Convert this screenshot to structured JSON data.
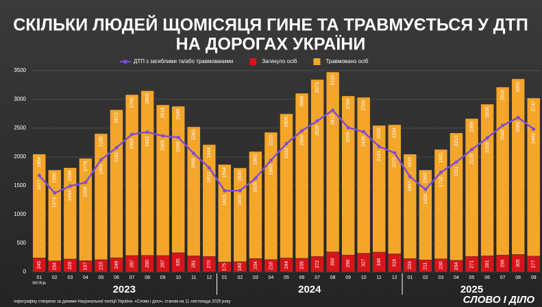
{
  "chart_data": {
    "type": "bar",
    "title": "СКІЛЬКИ ЛЮДЕЙ ЩОМІСЯЦЯ ГИНЕ ТА ТРАВМУЄТЬСЯ У ДТП",
    "subtitle": "НА ДОРОГАХ УКРАЇНИ",
    "x_label": "МІСЯЦЬ",
    "categories": [
      "01",
      "02",
      "03",
      "04",
      "05",
      "06",
      "07",
      "08",
      "09",
      "10",
      "11",
      "12",
      "01",
      "02",
      "03",
      "04",
      "05",
      "06",
      "07",
      "08",
      "09",
      "10",
      "11",
      "12",
      "01",
      "02",
      "03",
      "04",
      "05",
      "06",
      "07",
      "08",
      "09"
    ],
    "years": [
      "2023",
      "2024",
      "2025"
    ],
    "series": [
      {
        "name": "ДТП з загиблими та/або травмованими",
        "type": "line",
        "color": "#7b4fd6",
        "values": [
          1677,
          1373,
          1494,
          1556,
          1951,
          2161,
          2393,
          2432,
          2365,
          2340,
          2059,
          1812,
          1413,
          1415,
          1629,
          1943,
          2232,
          2454,
          2626,
          2812,
          2509,
          2436,
          2181,
          2070,
          1657,
          1436,
          1733,
          1911,
          2129,
          2329,
          2546,
          2685,
          2483
        ]
      },
      {
        "name": "Загинуло осіб",
        "type": "bar",
        "color": "#d7141a",
        "values": [
          245,
          194,
          226,
          197,
          215,
          249,
          287,
          290,
          287,
          335,
          281,
          270,
          175,
          180,
          234,
          216,
          244,
          239,
          272,
          350,
          296,
          327,
          346,
          316,
          233,
          211,
          230,
          204,
          271,
          281,
          296,
          305,
          277
        ]
      },
      {
        "name": "Травмовано осіб",
        "type": "bar",
        "color": "#f4a62a",
        "values": [
          1804,
          1580,
          1588,
          1779,
          2190,
          2572,
          2796,
          2860,
          2618,
          2546,
          2243,
          1944,
          1694,
          1630,
          1861,
          2213,
          2506,
          2868,
          3073,
          3126,
          2764,
          2709,
          2202,
          2244,
          1815,
          1563,
          1901,
          2213,
          2396,
          2636,
          2918,
          3052,
          2747
        ]
      }
    ],
    "ylim": [
      0,
      3500
    ],
    "yticks": [
      0,
      500,
      1000,
      1500,
      2000,
      2500,
      3000,
      3500
    ],
    "grid": true,
    "footnote": "Інфографіку створено за даними Національної поліції України. «Слово і діло», станом на 11 листопада 2025 року",
    "logo": "СЛОВО І ДІЛО"
  }
}
